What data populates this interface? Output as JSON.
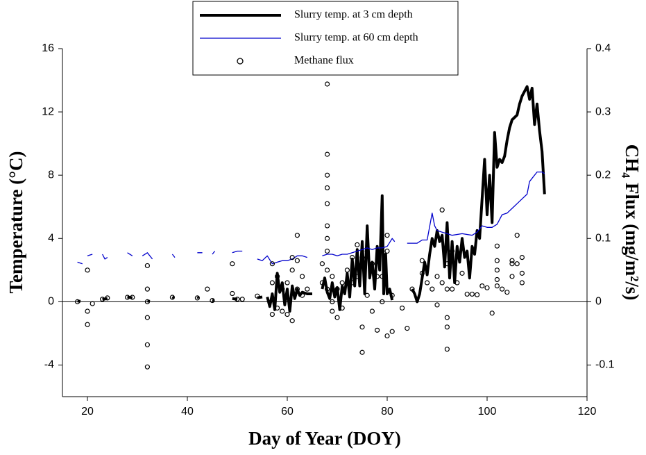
{
  "chart_data": {
    "type": "line",
    "xlabel": "Day of Year (DOY)",
    "ylabel": "Temperature (°C)",
    "y2label": "CH₄ Flux (mg/m²/s)",
    "xlim": [
      15,
      120
    ],
    "xticks": [
      20,
      40,
      60,
      80,
      100,
      120
    ],
    "ylim": [
      -6,
      16
    ],
    "yticks": [
      -4,
      0,
      4,
      8,
      12,
      16
    ],
    "y2lim": [
      -0.15,
      0.4
    ],
    "y2ticks": [
      -0.1,
      0,
      0.1,
      0.2,
      0.3,
      0.4
    ],
    "zero_line": true,
    "legend": "top",
    "series": [
      {
        "name": "Slurry temp. at 3 cm depth",
        "color": "#000000",
        "style": "line",
        "width": 4,
        "x": [
          18,
          18.6,
          null,
          23,
          24,
          null,
          28,
          29,
          null,
          32,
          32.5,
          null,
          37,
          37.3,
          null,
          42,
          42.3,
          null,
          45,
          45.3,
          null,
          49,
          50,
          null,
          54,
          55,
          null,
          56,
          56.5,
          57,
          57.5,
          58,
          58.5,
          59,
          59.5,
          60,
          60.5,
          61,
          61.5,
          62,
          62.5,
          63,
          64,
          65,
          null,
          67,
          67.5,
          68,
          68.5,
          69,
          69.5,
          70,
          70.5,
          71,
          71.5,
          72,
          72.5,
          73,
          73.5,
          74,
          74.5,
          75,
          75.5,
          76,
          76.5,
          77,
          77.5,
          78,
          78.5,
          79,
          79.3,
          79.7,
          80,
          80.5,
          81,
          null,
          85,
          85.5,
          86,
          86.5,
          87,
          87.5,
          88,
          88.5,
          89,
          89.5,
          90,
          90.5,
          91,
          91.5,
          92,
          92.5,
          93,
          93.5,
          94,
          94.5,
          95,
          95.5,
          96,
          96.5,
          97,
          97.5,
          98,
          98.5,
          99,
          99.5,
          100,
          100.5,
          101,
          101.5,
          102,
          102.5,
          103,
          103.5,
          104,
          104.5,
          105,
          106,
          106.5,
          107,
          107.5,
          108,
          108.5,
          109,
          109.5,
          110,
          110.5,
          111,
          111.5
        ],
        "values": [
          0.05,
          0.02,
          null,
          0.15,
          0.2,
          null,
          0.3,
          0.25,
          null,
          0.05,
          0.02,
          null,
          0.3,
          0.25,
          null,
          0.3,
          0.25,
          null,
          0.1,
          0.08,
          null,
          0.2,
          0.15,
          null,
          0.25,
          0.3,
          null,
          0.3,
          -0.3,
          0.5,
          -0.5,
          1.8,
          0.6,
          1.2,
          -0.2,
          0.8,
          -0.6,
          1.0,
          0.2,
          0.8,
          0.4,
          0.6,
          0.5,
          0.5,
          null,
          0.8,
          1.5,
          0.6,
          0.2,
          1.2,
          0.3,
          0.9,
          -0.5,
          1.0,
          0.5,
          1.8,
          0.3,
          2.7,
          1.0,
          3.3,
          1.0,
          3.8,
          0.5,
          4.8,
          1.5,
          2.5,
          0.8,
          3.5,
          2.0,
          6.7,
          0.5,
          3.0,
          0.5,
          0.8,
          0.1,
          null,
          0.8,
          0.5,
          0.0,
          0.5,
          1.5,
          2.5,
          1.7,
          3.0,
          4.0,
          3.5,
          4.5,
          3.8,
          4.2,
          2.2,
          5.0,
          1.5,
          3.8,
          1.2,
          3.5,
          2.5,
          4.0,
          2.8,
          3.2,
          1.5,
          3.5,
          3.0,
          4.5,
          4.0,
          6.5,
          9.0,
          5.5,
          8.0,
          5.0,
          10.7,
          8.5,
          9.0,
          8.8,
          9.2,
          10.2,
          11.0,
          11.5,
          11.8,
          12.5,
          13.0,
          13.3,
          13.6,
          12.8,
          13.5,
          11.2,
          12.5,
          10.8,
          9.5,
          6.8
        ]
      },
      {
        "name": "Slurry temp. at 60 cm depth",
        "color": "#0000cc",
        "style": "line",
        "width": 1.3,
        "x": [
          18,
          19,
          null,
          20,
          21,
          null,
          23,
          23.5,
          24,
          null,
          28,
          29,
          null,
          31,
          32,
          33,
          null,
          37,
          37.5,
          null,
          42,
          43,
          null,
          45,
          45.5,
          null,
          49,
          50,
          51,
          null,
          54,
          55,
          56,
          57,
          58,
          59,
          60,
          61,
          62,
          63,
          64,
          null,
          67,
          68,
          69,
          70,
          71,
          72,
          73,
          74,
          75,
          76,
          77,
          78,
          79,
          80,
          81,
          81.5,
          null,
          84,
          85,
          86,
          87,
          88,
          89,
          89.5,
          90,
          91,
          92,
          93,
          95,
          97,
          98,
          99,
          100,
          101,
          102,
          103,
          104,
          105,
          106,
          107,
          108,
          108.5,
          109,
          110,
          111,
          111.5
        ],
        "values": [
          2.5,
          2.4,
          null,
          2.9,
          3.0,
          null,
          3.0,
          2.7,
          2.8,
          null,
          3.1,
          2.9,
          null,
          2.9,
          3.1,
          2.7,
          null,
          3.0,
          2.8,
          null,
          3.1,
          3.1,
          null,
          3.0,
          3.2,
          null,
          3.1,
          3.2,
          3.2,
          null,
          2.7,
          2.6,
          2.9,
          2.4,
          2.5,
          2.6,
          2.6,
          2.7,
          2.9,
          2.9,
          2.8,
          null,
          2.9,
          3.0,
          3.0,
          2.9,
          3.0,
          3.0,
          3.1,
          3.2,
          3.3,
          3.4,
          3.3,
          3.4,
          3.4,
          3.5,
          4.0,
          3.8,
          null,
          3.7,
          3.7,
          3.7,
          3.9,
          3.9,
          5.6,
          4.8,
          4.5,
          4.4,
          4.3,
          4.2,
          4.3,
          4.2,
          4.4,
          4.8,
          4.7,
          4.7,
          4.9,
          5.5,
          5.6,
          5.9,
          6.2,
          6.5,
          6.8,
          7.6,
          7.8,
          8.2,
          8.2,
          8.1
        ]
      },
      {
        "name": "Methane flux",
        "color": "#000000",
        "style": "scatter",
        "axis": "y2",
        "x": [
          18,
          20,
          20,
          20,
          21,
          23,
          24,
          28,
          29,
          32,
          32,
          32,
          32,
          32,
          32,
          37,
          42,
          44,
          45,
          49,
          49,
          50,
          51,
          54,
          57,
          57,
          57,
          58,
          58,
          59,
          59,
          60,
          60,
          61,
          61,
          61,
          62,
          62,
          62,
          63,
          63,
          64,
          67,
          67,
          68,
          68,
          68,
          68,
          68,
          68,
          68,
          68,
          68,
          68,
          69,
          69,
          69,
          70,
          70,
          71,
          71,
          72,
          73,
          73,
          74,
          74,
          75,
          75,
          75,
          76,
          76,
          77,
          77,
          78,
          78,
          79,
          79,
          80,
          80,
          80,
          81,
          81,
          83,
          84,
          85,
          87,
          87,
          88,
          89,
          90,
          90,
          91,
          91,
          92,
          92,
          92,
          92,
          92,
          93,
          93,
          94,
          95,
          96,
          97,
          98,
          99,
          100,
          101,
          102,
          102,
          102,
          102,
          102,
          103,
          104,
          105,
          105,
          105,
          106,
          106,
          107,
          107,
          107
        ],
        "values": [
          0,
          0.05,
          -0.015,
          -0.036,
          -0.003,
          0.004,
          0.006,
          0.007,
          0.007,
          0.057,
          0.02,
          0,
          -0.025,
          -0.068,
          -0.103,
          0.007,
          0.006,
          0.02,
          0.002,
          0.06,
          0.013,
          0.004,
          0.004,
          0.009,
          0.06,
          0.03,
          -0.02,
          0.04,
          -0.01,
          0.02,
          -0.015,
          0.03,
          -0.02,
          0.07,
          0.05,
          -0.03,
          0.105,
          0.065,
          0.02,
          0.04,
          0.01,
          0.02,
          0.06,
          0.03,
          0.344,
          0.233,
          0.2,
          0.18,
          0.155,
          0.12,
          0.1,
          0.08,
          0.05,
          0.02,
          0.04,
          0,
          -0.015,
          0.02,
          -0.025,
          0.03,
          -0.01,
          0.05,
          0.07,
          0.03,
          0.09,
          0.04,
          0.07,
          -0.04,
          -0.08,
          0.08,
          0.01,
          0.06,
          -0.015,
          0.04,
          -0.045,
          0.04,
          0,
          0.105,
          0.08,
          -0.054,
          -0.047,
          0.01,
          -0.01,
          -0.042,
          0.02,
          0.065,
          0.045,
          0.03,
          0.02,
          0.04,
          -0.005,
          0.145,
          0.03,
          0.06,
          0.02,
          -0.025,
          -0.04,
          -0.075,
          0.08,
          0.02,
          0.03,
          0.045,
          0.012,
          0.012,
          0.011,
          0.025,
          0.022,
          -0.018,
          0.088,
          0.065,
          0.05,
          0.035,
          0.025,
          0.02,
          0.015,
          0.065,
          0.06,
          0.04,
          0.105,
          0.06,
          0.07,
          0.045,
          0.03
        ]
      }
    ]
  }
}
